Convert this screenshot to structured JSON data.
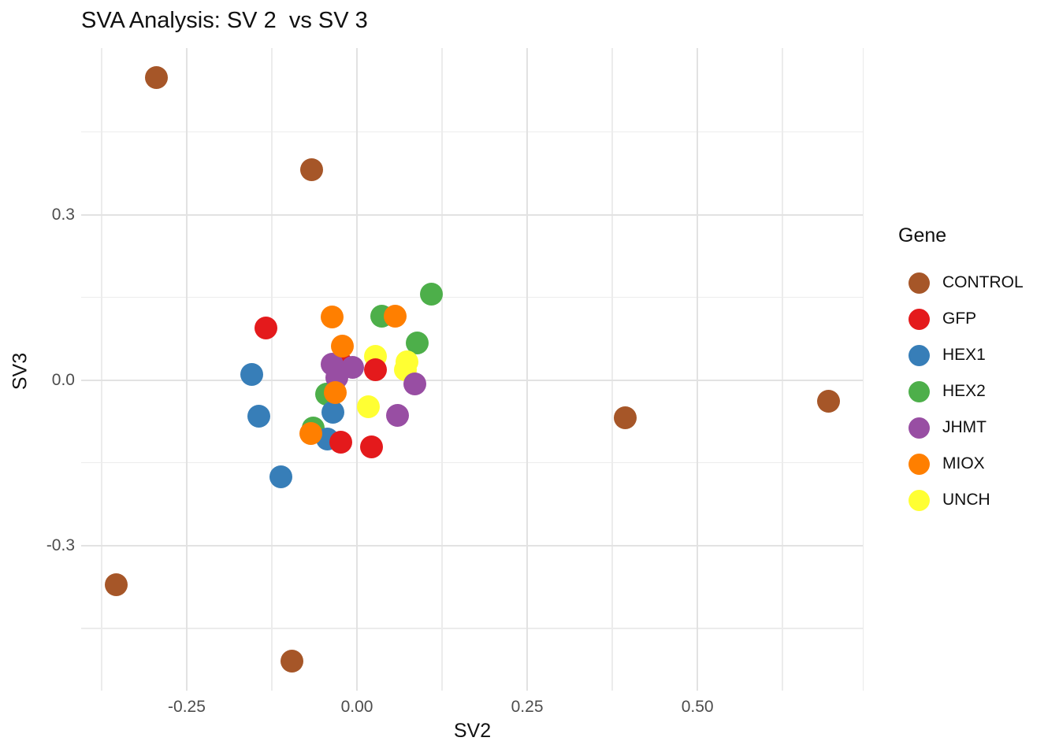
{
  "title": "SVA Analysis: SV 2  vs SV 3",
  "chart_data": {
    "type": "scatter",
    "title": "SVA Analysis: SV 2  vs SV 3",
    "xlabel": "SV2",
    "ylabel": "SV3",
    "xlim": [
      -0.405,
      0.744
    ],
    "ylim": [
      -0.563,
      0.602
    ],
    "grid": "on",
    "legend_position": "right",
    "legend_title": "Gene",
    "x_ticks": {
      "values": [
        -0.25,
        0.0,
        0.25,
        0.5
      ],
      "labels": [
        "-0.25",
        "0.00",
        "0.25",
        "0.50"
      ]
    },
    "y_ticks": {
      "values": [
        0.3,
        0.0,
        -0.3
      ],
      "labels": [
        "0.3",
        "0.0",
        "-0.3"
      ]
    },
    "x_minor": [
      -0.375,
      -0.125,
      0.125,
      0.375,
      0.625
    ],
    "y_minor": [
      0.45,
      0.15,
      -0.15,
      -0.45
    ],
    "series": [
      {
        "name": "CONTROL",
        "color": "#A65628",
        "points": [
          [
            -0.295,
            0.549
          ],
          [
            -0.066,
            0.382
          ],
          [
            0.394,
            -0.068
          ],
          [
            0.692,
            -0.039
          ],
          [
            -0.353,
            -0.371
          ],
          [
            -0.095,
            -0.51
          ]
        ]
      },
      {
        "name": "GFP",
        "color": "#E41A1C",
        "points": [
          [
            -0.134,
            0.094
          ],
          [
            -0.024,
            0.032
          ],
          [
            0.027,
            0.019
          ],
          [
            -0.024,
            -0.113
          ],
          [
            0.021,
            -0.121
          ]
        ]
      },
      {
        "name": "HEX1",
        "color": "#377EB8",
        "points": [
          [
            -0.155,
            0.01
          ],
          [
            -0.144,
            -0.065
          ],
          [
            -0.035,
            -0.058
          ],
          [
            -0.043,
            -0.107
          ],
          [
            -0.112,
            -0.175
          ]
        ]
      },
      {
        "name": "HEX2",
        "color": "#4DAF4A",
        "points": [
          [
            0.109,
            0.156
          ],
          [
            0.036,
            0.116
          ],
          [
            0.089,
            0.068
          ],
          [
            -0.044,
            -0.026
          ],
          [
            -0.064,
            -0.087
          ]
        ]
      },
      {
        "name": "JHMT",
        "color": "#984EA3",
        "points": [
          [
            -0.036,
            0.029
          ],
          [
            -0.006,
            0.023
          ],
          [
            -0.029,
            0.005
          ],
          [
            0.085,
            -0.007
          ],
          [
            0.059,
            -0.064
          ]
        ]
      },
      {
        "name": "MIOX",
        "color": "#FF7F00",
        "points": [
          [
            -0.037,
            0.114
          ],
          [
            0.056,
            0.116
          ],
          [
            -0.021,
            0.061
          ],
          [
            -0.032,
            -0.022
          ],
          [
            -0.068,
            -0.097
          ]
        ]
      },
      {
        "name": "UNCH",
        "color": "#FFFF33",
        "points": [
          [
            0.027,
            0.043
          ],
          [
            0.073,
            0.033
          ],
          [
            0.071,
            0.019
          ],
          [
            0.017,
            -0.049
          ]
        ]
      }
    ],
    "draw_order": [
      "HEX2",
      "UNCH",
      "HEX1",
      "GFP",
      "JHMT",
      "MIOX",
      "CONTROL"
    ]
  }
}
